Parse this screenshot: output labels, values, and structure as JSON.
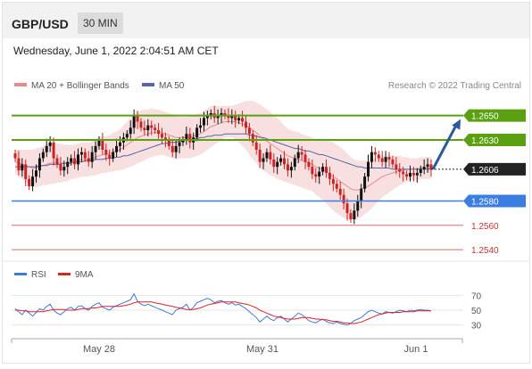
{
  "header": {
    "symbol": "GBP/USD",
    "timeframe": "30 MIN"
  },
  "datetime": "Wednesday, June 1, 2022 2:04:51 AM CET",
  "legend": {
    "ma20_bb": "MA 20 + Bollinger Bands",
    "ma50": "MA 50",
    "research": "Research © 2022 Trading Central"
  },
  "rsi_legend": {
    "rsi": "RSI",
    "ma9": "9MA"
  },
  "colors": {
    "bull": "#111111",
    "bear": "#cc2222",
    "bollinger_fill": "#f8dada",
    "ma20": "#e88a8a",
    "ma50": "#5566aa",
    "resistance": "#5aa010",
    "support": "#3b7de0",
    "level_line": "#e26a6a",
    "current": "#222222",
    "arrow": "#2e5a9a",
    "rsi": "#4477dd",
    "rsi_ma": "#dd2222"
  },
  "chart_data": [
    {
      "type": "candlestick",
      "title": "GBP/USD 30 MIN",
      "x_ticks": [
        "May 28",
        "May 31",
        "Jun 1"
      ],
      "ylim": [
        1.2535,
        1.266
      ],
      "levels": [
        {
          "value": 1.265,
          "label": "1.2650",
          "kind": "resistance"
        },
        {
          "value": 1.263,
          "label": "1.2630",
          "kind": "resistance"
        },
        {
          "value": 1.2606,
          "label": "1.2606",
          "kind": "current"
        },
        {
          "value": 1.258,
          "label": "1.2580",
          "kind": "support"
        },
        {
          "value": 1.256,
          "label": "1.2560",
          "kind": "level"
        },
        {
          "value": 1.254,
          "label": "1.2540",
          "kind": "level"
        }
      ],
      "close": [
        1.2615,
        1.2605,
        1.261,
        1.2598,
        1.2592,
        1.26,
        1.2605,
        1.2615,
        1.262,
        1.2625,
        1.2628,
        1.2615,
        1.261,
        1.2605,
        1.2608,
        1.2612,
        1.2615,
        1.261,
        1.2618,
        1.262,
        1.2615,
        1.2612,
        1.262,
        1.2625,
        1.263,
        1.2622,
        1.2618,
        1.2615,
        1.262,
        1.2625,
        1.2628,
        1.2632,
        1.2635,
        1.264,
        1.265,
        1.2645,
        1.264,
        1.2638,
        1.2642,
        1.264,
        1.2638,
        1.2635,
        1.2632,
        1.263,
        1.2625,
        1.262,
        1.2625,
        1.2628,
        1.263,
        1.2635,
        1.2628,
        1.2632,
        1.264,
        1.2642,
        1.2648,
        1.265,
        1.2652,
        1.2648,
        1.265,
        1.2652,
        1.265,
        1.2648,
        1.265,
        1.2646,
        1.2648,
        1.2645,
        1.264,
        1.2635,
        1.2628,
        1.2622,
        1.2612,
        1.2615,
        1.262,
        1.2614,
        1.2608,
        1.2612,
        1.2615,
        1.261,
        1.2605,
        1.2608,
        1.2615,
        1.262,
        1.2618,
        1.2612,
        1.2608,
        1.2602,
        1.26,
        1.2604,
        1.2608,
        1.2603,
        1.2598,
        1.2594,
        1.259,
        1.2585,
        1.2578,
        1.257,
        1.2565,
        1.2572,
        1.258,
        1.259,
        1.26,
        1.2612,
        1.262,
        1.2618,
        1.2615,
        1.2612,
        1.2616,
        1.2614,
        1.261,
        1.2606,
        1.2604,
        1.2602,
        1.26,
        1.2603,
        1.2601,
        1.2603,
        1.2606,
        1.2608,
        1.261,
        1.2606
      ],
      "ma20": [
        1.2612,
        1.2611,
        1.261,
        1.2609,
        1.2608,
        1.2607,
        1.2607,
        1.2608,
        1.2609,
        1.261,
        1.2611,
        1.2611,
        1.2611,
        1.2611,
        1.2611,
        1.2611,
        1.2612,
        1.2612,
        1.2613,
        1.2614,
        1.2614,
        1.2614,
        1.2615,
        1.2616,
        1.2617,
        1.2618,
        1.2618,
        1.2619,
        1.262,
        1.2621,
        1.2622,
        1.2624,
        1.2626,
        1.2628,
        1.263,
        1.2632,
        1.2633,
        1.2634,
        1.2635,
        1.2636,
        1.2636,
        1.2636,
        1.2636,
        1.2635,
        1.2634,
        1.2633,
        1.2632,
        1.2632,
        1.2632,
        1.2632,
        1.2632,
        1.2633,
        1.2634,
        1.2635,
        1.2637,
        1.2639,
        1.2641,
        1.2642,
        1.2643,
        1.2644,
        1.2645,
        1.2645,
        1.2645,
        1.2645,
        1.2644,
        1.2643,
        1.2642,
        1.264,
        1.2638,
        1.2636,
        1.2633,
        1.2631,
        1.2629,
        1.2627,
        1.2625,
        1.2623,
        1.2621,
        1.2619,
        1.2617,
        1.2616,
        1.2615,
        1.2614,
        1.2613,
        1.2612,
        1.2611,
        1.261,
        1.2608,
        1.2607,
        1.2606,
        1.2604,
        1.2602,
        1.26,
        1.2598,
        1.2596,
        1.2594,
        1.2592,
        1.259,
        1.2589,
        1.2589,
        1.259,
        1.2591,
        1.2592,
        1.2594,
        1.2596,
        1.2598,
        1.26,
        1.2601,
        1.2602,
        1.2603,
        1.2604,
        1.2605,
        1.2605,
        1.2606,
        1.2606,
        1.2606,
        1.2606,
        1.2607,
        1.2607,
        1.2607,
        1.2607
      ],
      "ma50": [
        1.2608,
        1.2608,
        1.2608,
        1.2608,
        1.2608,
        1.2608,
        1.2608,
        1.2609,
        1.2609,
        1.2609,
        1.261,
        1.261,
        1.261,
        1.261,
        1.2611,
        1.2611,
        1.2611,
        1.2612,
        1.2612,
        1.2612,
        1.2613,
        1.2613,
        1.2613,
        1.2614,
        1.2614,
        1.2614,
        1.2615,
        1.2615,
        1.2615,
        1.2616,
        1.2616,
        1.2617,
        1.2617,
        1.2618,
        1.2619,
        1.262,
        1.2621,
        1.2622,
        1.2623,
        1.2624,
        1.2625,
        1.2626,
        1.2627,
        1.2627,
        1.2628,
        1.2628,
        1.2628,
        1.2629,
        1.2629,
        1.263,
        1.263,
        1.2631,
        1.2631,
        1.2632,
        1.2632,
        1.2633,
        1.2633,
        1.2634,
        1.2634,
        1.2634,
        1.2635,
        1.2635,
        1.2635,
        1.2635,
        1.2635,
        1.2635,
        1.2635,
        1.2634,
        1.2634,
        1.2633,
        1.2632,
        1.2632,
        1.2631,
        1.263,
        1.2629,
        1.2628,
        1.2627,
        1.2626,
        1.2625,
        1.2624,
        1.2623,
        1.2623,
        1.2622,
        1.2621,
        1.2621,
        1.262,
        1.2619,
        1.2618,
        1.2618,
        1.2617,
        1.2616,
        1.2615,
        1.2614,
        1.2613,
        1.2612,
        1.2611,
        1.261,
        1.2609,
        1.2608,
        1.2608,
        1.2607,
        1.2607,
        1.2607,
        1.2607,
        1.2607,
        1.2607,
        1.2607,
        1.2607,
        1.2606,
        1.2606,
        1.2606,
        1.2606,
        1.2606,
        1.2606,
        1.2606,
        1.2606,
        1.2606,
        1.2606,
        1.2606,
        1.2606
      ],
      "band_width": [
        0.001,
        0.0011,
        0.0012,
        0.0013,
        0.0014,
        0.0015,
        0.0016,
        0.0016,
        0.0016,
        0.0017,
        0.0017,
        0.0017,
        0.0016,
        0.0016,
        0.0015,
        0.0015,
        0.0014,
        0.0014,
        0.0014,
        0.0014,
        0.0014,
        0.0014,
        0.0014,
        0.0015,
        0.0015,
        0.0015,
        0.0015,
        0.0015,
        0.0016,
        0.0016,
        0.0017,
        0.0018,
        0.0019,
        0.002,
        0.0021,
        0.0021,
        0.0021,
        0.0021,
        0.002,
        0.002,
        0.0019,
        0.0019,
        0.0018,
        0.0018,
        0.0018,
        0.0018,
        0.0018,
        0.0017,
        0.0017,
        0.0017,
        0.0017,
        0.0017,
        0.0017,
        0.0017,
        0.0017,
        0.0017,
        0.0017,
        0.0016,
        0.0015,
        0.0014,
        0.0013,
        0.0013,
        0.0013,
        0.0014,
        0.0016,
        0.0018,
        0.002,
        0.0022,
        0.0024,
        0.0025,
        0.0026,
        0.0026,
        0.0026,
        0.0026,
        0.0025,
        0.0025,
        0.0024,
        0.0023,
        0.0022,
        0.0022,
        0.0022,
        0.0022,
        0.0022,
        0.0022,
        0.0022,
        0.0022,
        0.0023,
        0.0024,
        0.0025,
        0.0026,
        0.0027,
        0.0028,
        0.0028,
        0.0028,
        0.0028,
        0.0027,
        0.0026,
        0.0025,
        0.0024,
        0.0023,
        0.0022,
        0.0021,
        0.002,
        0.0019,
        0.0018,
        0.0017,
        0.0016,
        0.0015,
        0.0014,
        0.0013,
        0.0012,
        0.0011,
        0.001,
        0.0009,
        0.0009,
        0.0009,
        0.0009,
        0.0009,
        0.0009,
        0.0009
      ],
      "projection": [
        1.2606,
        1.265
      ]
    },
    {
      "type": "line",
      "title": "RSI",
      "ylim": [
        20,
        80
      ],
      "y_ticks": [
        70,
        50,
        30
      ],
      "series": [
        {
          "name": "RSI",
          "values": [
            52,
            48,
            44,
            50,
            46,
            42,
            47,
            52,
            50,
            55,
            58,
            50,
            46,
            44,
            48,
            52,
            54,
            50,
            55,
            56,
            52,
            50,
            55,
            58,
            60,
            54,
            52,
            50,
            54,
            56,
            58,
            60,
            62,
            64,
            72,
            62,
            58,
            56,
            58,
            56,
            54,
            52,
            50,
            48,
            46,
            44,
            50,
            52,
            54,
            58,
            50,
            54,
            60,
            62,
            64,
            66,
            64,
            60,
            62,
            63,
            60,
            58,
            60,
            57,
            58,
            55,
            52,
            48,
            44,
            40,
            34,
            38,
            42,
            38,
            36,
            40,
            42,
            38,
            34,
            38,
            42,
            46,
            44,
            40,
            36,
            34,
            33,
            36,
            38,
            35,
            33,
            32,
            34,
            32,
            31,
            30,
            32,
            36,
            38,
            40,
            44,
            48,
            50,
            48,
            46,
            45,
            48,
            47,
            46,
            48,
            50,
            49,
            48,
            50,
            49,
            50,
            51,
            50,
            50,
            49
          ]
        },
        {
          "name": "9MA",
          "values": [
            50,
            50,
            49,
            49,
            48,
            48,
            48,
            48,
            48,
            49,
            50,
            51,
            51,
            51,
            51,
            50,
            50,
            50,
            51,
            52,
            52,
            52,
            53,
            53,
            54,
            55,
            55,
            55,
            55,
            55,
            55,
            56,
            57,
            58,
            60,
            61,
            61,
            61,
            61,
            61,
            60,
            59,
            58,
            57,
            56,
            55,
            54,
            53,
            52,
            51,
            51,
            51,
            52,
            53,
            55,
            57,
            58,
            59,
            60,
            61,
            61,
            61,
            61,
            61,
            60,
            59,
            58,
            57,
            55,
            53,
            50,
            48,
            46,
            44,
            42,
            41,
            40,
            39,
            38,
            38,
            38,
            39,
            40,
            40,
            40,
            39,
            38,
            38,
            37,
            37,
            36,
            35,
            35,
            34,
            33,
            33,
            32,
            32,
            33,
            34,
            36,
            38,
            40,
            42,
            44,
            45,
            46,
            47,
            47,
            47,
            47,
            48,
            48,
            48,
            48,
            49,
            49,
            49,
            49,
            49
          ]
        }
      ]
    }
  ]
}
